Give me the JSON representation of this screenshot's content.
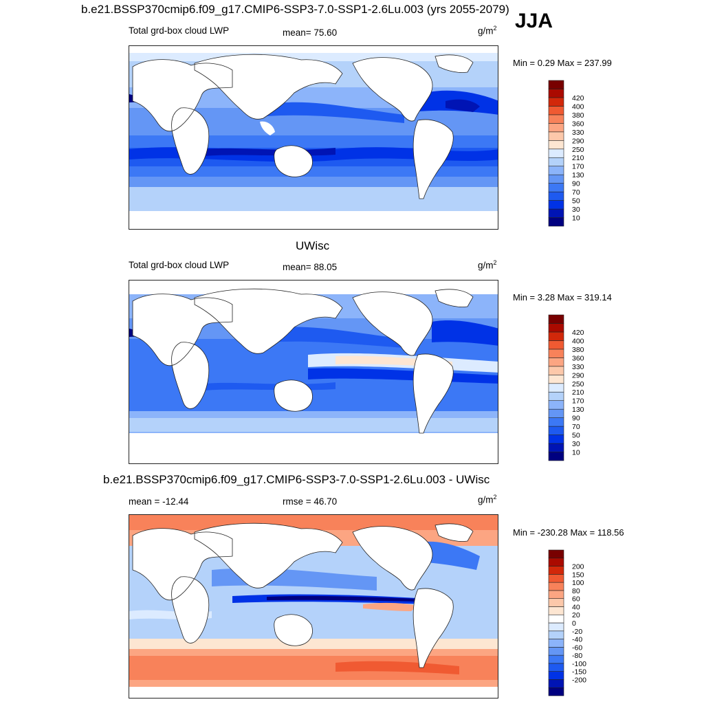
{
  "header": {
    "title": "b.e21.BSSP370cmip6.f09_g17.CMIP6-SSP3-7.0-SSP1-2.6Lu.003 (yrs 2055-2079)",
    "season": "JJA"
  },
  "palettes": {
    "abs": [
      "#000080",
      "#0014b4",
      "#0032e6",
      "#1e5af0",
      "#3c78f5",
      "#6496f5",
      "#8cb4fa",
      "#b4d2fa",
      "#dcebff",
      "#fde6d2",
      "#fcc8aa",
      "#fca582",
      "#f8825a",
      "#f05a32",
      "#d2280a",
      "#aa0a00",
      "#780000"
    ],
    "diff": [
      "#000080",
      "#0014b4",
      "#0032e6",
      "#1e5af0",
      "#3c78f5",
      "#6496f5",
      "#8cb4fa",
      "#b4d2fa",
      "#dcebff",
      "#ffffff",
      "#fde6d2",
      "#fcc8aa",
      "#fca582",
      "#f8825a",
      "#f05a32",
      "#d2280a",
      "#aa0a00",
      "#780000"
    ]
  },
  "panels": [
    {
      "id": "case",
      "heading": "",
      "left_label": "Total grd-box cloud LWP",
      "stat_label": "mean=  75.60",
      "units_base": "g/m",
      "units_exp": "2",
      "minmax": "Min =   0.29 Max = 237.99",
      "palette": "abs",
      "levels": [
        "10",
        "30",
        "50",
        "70",
        "90",
        "130",
        "170",
        "210",
        "250",
        "290",
        "330",
        "360",
        "380",
        "400",
        "420"
      ]
    },
    {
      "id": "obs",
      "heading": "UWisc",
      "left_label": "Total grd-box cloud LWP",
      "stat_label": "mean=  88.05",
      "units_base": "g/m",
      "units_exp": "2",
      "minmax": "Min =   3.28 Max = 319.14",
      "palette": "abs",
      "levels": [
        "10",
        "30",
        "50",
        "70",
        "90",
        "130",
        "170",
        "210",
        "250",
        "290",
        "330",
        "360",
        "380",
        "400",
        "420"
      ]
    },
    {
      "id": "diff",
      "heading": "b.e21.BSSP370cmip6.f09_g17.CMIP6-SSP3-7.0-SSP1-2.6Lu.003 - UWisc",
      "left_label": "mean = -12.44",
      "stat_label": "rmse =  46.70",
      "units_base": "g/m",
      "units_exp": "2",
      "minmax": "Min = -230.28 Max = 118.56",
      "palette": "diff",
      "levels": [
        "-200",
        "-150",
        "-100",
        "-80",
        "-60",
        "-40",
        "-20",
        "0",
        "20",
        "40",
        "60",
        "80",
        "100",
        "150",
        "200"
      ]
    }
  ],
  "chart_data": [
    {
      "type": "heatmap",
      "title": "b.e21.BSSP370cmip6.f09_g17.CMIP6-SSP3-7.0-SSP1-2.6Lu.003 (yrs 2055-2079)",
      "season": "JJA",
      "variable": "Total grd-box cloud LWP",
      "units": "g/m2",
      "mean": 75.6,
      "min": 0.29,
      "max": 237.99,
      "contour_levels": [
        10,
        30,
        50,
        70,
        90,
        130,
        170,
        210,
        250,
        290,
        330,
        360,
        380,
        400,
        420
      ]
    },
    {
      "type": "heatmap",
      "title": "UWisc",
      "variable": "Total grd-box cloud LWP",
      "units": "g/m2",
      "mean": 88.05,
      "min": 3.28,
      "max": 319.14,
      "contour_levels": [
        10,
        30,
        50,
        70,
        90,
        130,
        170,
        210,
        250,
        290,
        330,
        360,
        380,
        400,
        420
      ]
    },
    {
      "type": "heatmap",
      "title": "b.e21.BSSP370cmip6.f09_g17.CMIP6-SSP3-7.0-SSP1-2.6Lu.003 - UWisc",
      "units": "g/m2",
      "mean": -12.44,
      "rmse": 46.7,
      "min": -230.28,
      "max": 118.56,
      "contour_levels": [
        -200,
        -150,
        -100,
        -80,
        -60,
        -40,
        -20,
        0,
        20,
        40,
        60,
        80,
        100,
        150,
        200
      ]
    }
  ]
}
